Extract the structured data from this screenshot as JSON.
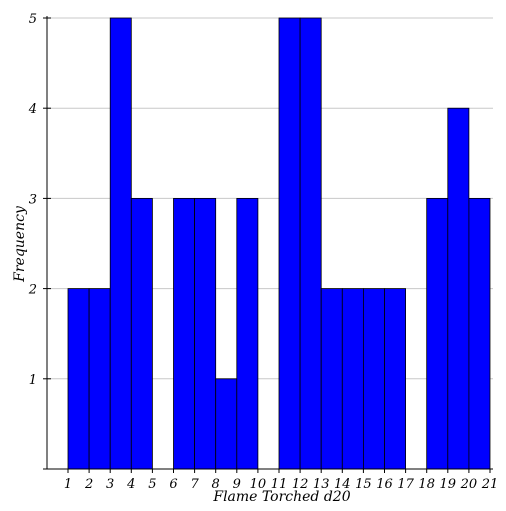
{
  "chart_data": {
    "type": "bar",
    "xlabel": "Flame Torched d20",
    "ylabel": "Frequency",
    "x_ticks": [
      "1",
      "2",
      "3",
      "4",
      "5",
      "6",
      "7",
      "8",
      "9",
      "10",
      "11",
      "12",
      "13",
      "14",
      "15",
      "16",
      "17",
      "18",
      "19",
      "20",
      "21"
    ],
    "y_ticks": [
      "1",
      "2",
      "3",
      "4",
      "5"
    ],
    "bins": [
      {
        "start": 1,
        "end": 2,
        "value": 2
      },
      {
        "start": 2,
        "end": 3,
        "value": 2
      },
      {
        "start": 3,
        "end": 4,
        "value": 5
      },
      {
        "start": 4,
        "end": 5,
        "value": 3
      },
      {
        "start": 5,
        "end": 6,
        "value": 0
      },
      {
        "start": 6,
        "end": 7,
        "value": 3
      },
      {
        "start": 7,
        "end": 8,
        "value": 3
      },
      {
        "start": 8,
        "end": 9,
        "value": 1
      },
      {
        "start": 9,
        "end": 10,
        "value": 3
      },
      {
        "start": 10,
        "end": 11,
        "value": 0
      },
      {
        "start": 11,
        "end": 12,
        "value": 5
      },
      {
        "start": 12,
        "end": 13,
        "value": 5
      },
      {
        "start": 13,
        "end": 14,
        "value": 2
      },
      {
        "start": 14,
        "end": 15,
        "value": 2
      },
      {
        "start": 15,
        "end": 16,
        "value": 2
      },
      {
        "start": 16,
        "end": 17,
        "value": 2
      },
      {
        "start": 17,
        "end": 18,
        "value": 0
      },
      {
        "start": 18,
        "end": 19,
        "value": 3
      },
      {
        "start": 19,
        "end": 20,
        "value": 4
      },
      {
        "start": 20,
        "end": 21,
        "value": 3
      }
    ],
    "xlim": [
      1,
      21
    ],
    "ylim": [
      0,
      5
    ],
    "grid": true,
    "colors": {
      "bar": "#0000ff",
      "grid": "#c8c8c8"
    }
  }
}
